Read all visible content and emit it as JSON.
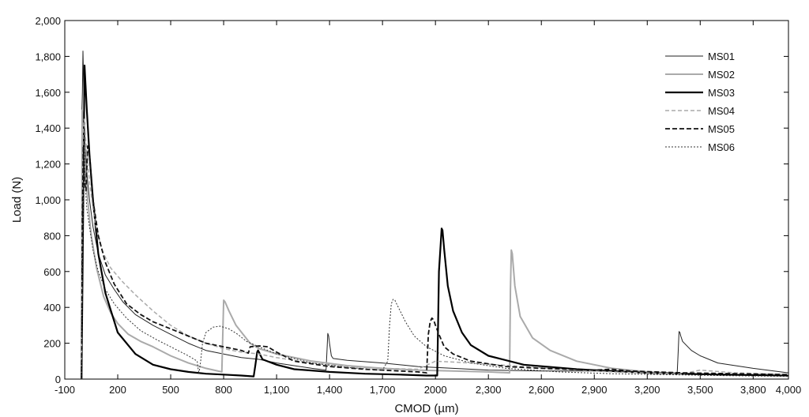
{
  "chart_data": {
    "type": "line",
    "title": "",
    "xlabel": "CMOD (µm)",
    "ylabel": "Load (N)",
    "xlim": [
      -100,
      4000
    ],
    "ylim": [
      0,
      2000
    ],
    "x_ticks": [
      -100,
      200,
      500,
      800,
      1100,
      1400,
      1700,
      2000,
      2300,
      2600,
      2900,
      3200,
      3500,
      3800,
      4000
    ],
    "x_tick_labels": [
      "-100",
      "200",
      "500",
      "800",
      "1,100",
      "1,400",
      "1,700",
      "2000",
      "2,300",
      "2,600",
      "2,900",
      "3,200",
      "3,500",
      "3,800",
      "4,000"
    ],
    "y_ticks": [
      0,
      200,
      400,
      600,
      800,
      1000,
      1200,
      1400,
      1600,
      1800,
      2000
    ],
    "y_tick_labels": [
      "0",
      "200",
      "400",
      "600",
      "800",
      "1,000",
      "1,200",
      "1,400",
      "1,600",
      "1,800",
      "2,000"
    ],
    "grid": false,
    "legend_position": "top-right",
    "series": [
      {
        "name": "MS01",
        "color": "#222222",
        "width": 1,
        "dash": "solid",
        "x": [
          -5,
          -3,
          0,
          3,
          8,
          15,
          25,
          40,
          60,
          90,
          130,
          180,
          230,
          300,
          400,
          500,
          600,
          700,
          800,
          900,
          1000,
          1100,
          1200,
          1300,
          1380,
          1385,
          1390,
          1395,
          1400,
          1410,
          1420,
          1500,
          1700,
          1900,
          2100,
          2300,
          2600,
          2900,
          3200,
          3370,
          3375,
          3380,
          3385,
          3390,
          3400,
          3450,
          3500,
          3600,
          3800,
          4000
        ],
        "y": [
          0,
          1500,
          1600,
          1830,
          1600,
          1300,
          1150,
          1000,
          850,
          700,
          580,
          500,
          430,
          360,
          300,
          250,
          200,
          160,
          140,
          120,
          110,
          90,
          75,
          60,
          50,
          150,
          255,
          240,
          200,
          130,
          115,
          105,
          90,
          70,
          60,
          50,
          45,
          45,
          40,
          35,
          150,
          265,
          260,
          240,
          210,
          160,
          130,
          90,
          60,
          35
        ]
      },
      {
        "name": "MS02",
        "color": "#aaaaaa",
        "width": 2,
        "dash": "solid",
        "x": [
          -5,
          -2,
          5,
          15,
          30,
          50,
          80,
          120,
          160,
          200,
          260,
          330,
          400,
          500,
          600,
          700,
          790,
          795,
          800,
          808,
          830,
          870,
          950,
          1000,
          1100,
          1300,
          1500,
          1700,
          1900,
          2100,
          2300,
          2420,
          2425,
          2430,
          2435,
          2440,
          2450,
          2480,
          2550,
          2650,
          2800,
          3000,
          3200,
          3400,
          3700,
          4000
        ],
        "y": [
          0,
          1500,
          1460,
          1200,
          1000,
          800,
          620,
          460,
          370,
          310,
          250,
          210,
          180,
          130,
          90,
          60,
          40,
          250,
          440,
          430,
          380,
          300,
          200,
          170,
          140,
          100,
          75,
          60,
          50,
          45,
          40,
          35,
          500,
          720,
          700,
          640,
          520,
          350,
          230,
          160,
          100,
          60,
          40,
          30,
          25,
          20
        ]
      },
      {
        "name": "MS03",
        "color": "#000000",
        "width": 2.2,
        "dash": "solid",
        "x": [
          -5,
          0,
          5,
          12,
          25,
          40,
          60,
          90,
          130,
          200,
          300,
          400,
          500,
          600,
          700,
          800,
          900,
          970,
          980,
          990,
          995,
          1000,
          1010,
          1020,
          1100,
          1200,
          1400,
          1600,
          1800,
          1950,
          2010,
          2015,
          2020,
          2030,
          2035,
          2040,
          2050,
          2070,
          2100,
          2150,
          2200,
          2300,
          2500,
          2800,
          3200,
          3600,
          4000
        ],
        "y": [
          0,
          500,
          1050,
          1750,
          1500,
          1250,
          1000,
          700,
          480,
          260,
          140,
          80,
          55,
          40,
          30,
          25,
          20,
          15,
          80,
          150,
          160,
          150,
          130,
          110,
          80,
          55,
          40,
          30,
          25,
          20,
          20,
          300,
          600,
          760,
          840,
          830,
          720,
          520,
          380,
          260,
          190,
          130,
          80,
          55,
          35,
          25,
          20
        ]
      },
      {
        "name": "MS04",
        "color": "#aaaaaa",
        "width": 1.5,
        "dash": "5,3",
        "x": [
          -5,
          -2,
          3,
          10,
          20,
          40,
          70,
          110,
          160,
          230,
          300,
          400,
          500,
          600,
          700,
          800,
          900,
          1000,
          1100,
          1300,
          1500,
          1700,
          1900,
          2000,
          2200,
          2500,
          2800,
          3000,
          3200,
          3400,
          3500,
          3700,
          4000
        ],
        "y": [
          0,
          1000,
          1350,
          1450,
          1320,
          1100,
          880,
          720,
          620,
          540,
          470,
          380,
          300,
          240,
          200,
          170,
          150,
          140,
          120,
          90,
          70,
          60,
          55,
          100,
          90,
          70,
          50,
          40,
          35,
          30,
          50,
          35,
          25
        ]
      },
      {
        "name": "MS05",
        "color": "#111111",
        "width": 1.8,
        "dash": "6,3",
        "x": [
          -5,
          0,
          5,
          12,
          20,
          30,
          40,
          60,
          90,
          130,
          180,
          250,
          330,
          400,
          500,
          600,
          700,
          800,
          900,
          940,
          950,
          1000,
          1050,
          1100,
          1200,
          1400,
          1600,
          1800,
          1900,
          1950,
          1960,
          1970,
          1980,
          1990,
          2000,
          2020,
          2050,
          2100,
          2200,
          2400,
          2600,
          2900,
          3000,
          3100,
          3400,
          3700,
          4000
        ],
        "y": [
          0,
          900,
          1300,
          1100,
          1050,
          1300,
          1250,
          1000,
          800,
          650,
          530,
          420,
          360,
          320,
          280,
          240,
          200,
          180,
          160,
          145,
          180,
          185,
          180,
          150,
          100,
          70,
          55,
          45,
          40,
          35,
          250,
          320,
          340,
          330,
          300,
          250,
          180,
          140,
          100,
          70,
          60,
          50,
          55,
          45,
          35,
          30,
          25
        ]
      },
      {
        "name": "MS06",
        "color": "#333333",
        "width": 1,
        "dash": "2,2",
        "x": [
          -5,
          0,
          5,
          10,
          15,
          25,
          40,
          60,
          90,
          130,
          180,
          250,
          330,
          420,
          500,
          600,
          650,
          655,
          660,
          670,
          680,
          700,
          740,
          780,
          830,
          880,
          930,
          1000,
          1100,
          1300,
          1500,
          1700,
          1730,
          1740,
          1750,
          1760,
          1770,
          1780,
          1800,
          1830,
          1880,
          1950,
          2050,
          2200,
          2400,
          2700,
          3000,
          3300,
          3600,
          4000
        ],
        "y": [
          0,
          600,
          1000,
          1400,
          1100,
          950,
          850,
          720,
          600,
          500,
          420,
          340,
          270,
          220,
          180,
          130,
          100,
          60,
          30,
          100,
          200,
          260,
          290,
          295,
          280,
          250,
          210,
          180,
          140,
          90,
          65,
          50,
          100,
          300,
          420,
          445,
          440,
          420,
          380,
          320,
          240,
          180,
          130,
          90,
          60,
          40,
          30,
          25,
          20,
          15
        ]
      }
    ]
  }
}
